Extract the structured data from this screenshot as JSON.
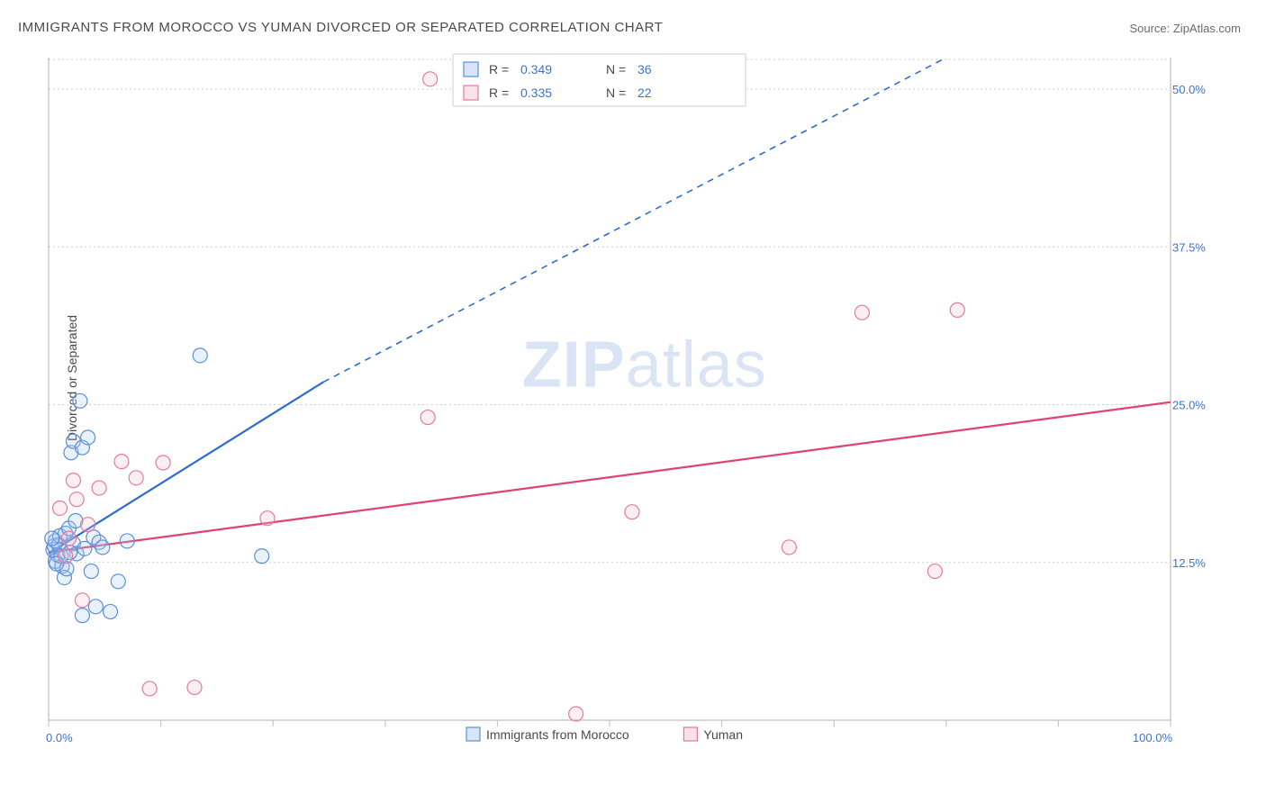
{
  "title_text": "IMMIGRANTS FROM MOROCCO VS YUMAN DIVORCED OR SEPARATED CORRELATION CHART",
  "source_prefix": "Source: ",
  "source_name": "ZipAtlas.com",
  "ylabel": "Divorced or Separated",
  "watermark_a": "ZIP",
  "watermark_b": "atlas",
  "chart": {
    "type": "scatter",
    "background_color": "#ffffff",
    "grid_color": "#cfcfcf",
    "axis_color": "#bdbdbd",
    "tick_label_color": "#3973d6",
    "label_color": "#4a4a4a",
    "label_fontsize": 14,
    "tick_fontsize": 13,
    "title_fontsize": 15,
    "xlim": [
      0,
      100
    ],
    "ylim": [
      0,
      52.5
    ],
    "x_ticks": [
      0,
      10,
      20,
      30,
      40,
      50,
      60,
      70,
      80,
      90,
      100
    ],
    "x_tick_labels": {
      "0": "0.0%",
      "100": "100.0%"
    },
    "y_ticks": [
      12.5,
      25.0,
      37.5,
      50.0
    ],
    "y_tick_labels": [
      "12.5%",
      "25.0%",
      "37.5%",
      "50.0%"
    ],
    "marker_radius": 8,
    "marker_stroke_width": 1.2,
    "marker_fill_opacity": 0.25
  },
  "series": [
    {
      "name": "Immigrants from Morocco",
      "color_stroke": "#5b8fd9",
      "color_fill": "#a9c6ef",
      "R": "0.349",
      "N": "36",
      "trend": {
        "solid": {
          "x1": 0,
          "y1": 13.2,
          "x2": 24.5,
          "y2": 26.8
        },
        "dash": {
          "x1": 24.5,
          "y1": 26.8,
          "x2": 80.0,
          "y2": 52.5
        },
        "color": "#2e6cd0",
        "width": 2.2
      },
      "points": [
        [
          0.4,
          13.5
        ],
        [
          0.5,
          13.8
        ],
        [
          0.6,
          12.6
        ],
        [
          0.6,
          14.2
        ],
        [
          0.8,
          13.1
        ],
        [
          0.9,
          13.9
        ],
        [
          1.0,
          14.6
        ],
        [
          1.2,
          12.2
        ],
        [
          1.4,
          11.3
        ],
        [
          1.5,
          14.8
        ],
        [
          1.6,
          12.0
        ],
        [
          1.8,
          15.2
        ],
        [
          2.0,
          21.2
        ],
        [
          2.2,
          22.1
        ],
        [
          2.2,
          14.0
        ],
        [
          2.5,
          13.2
        ],
        [
          2.8,
          25.3
        ],
        [
          3.0,
          21.6
        ],
        [
          3.0,
          8.3
        ],
        [
          3.5,
          22.4
        ],
        [
          3.8,
          11.8
        ],
        [
          4.0,
          14.5
        ],
        [
          4.2,
          9.0
        ],
        [
          4.5,
          14.1
        ],
        [
          4.8,
          13.7
        ],
        [
          5.5,
          8.6
        ],
        [
          6.2,
          11.0
        ],
        [
          7.0,
          14.2
        ],
        [
          3.2,
          13.6
        ],
        [
          13.5,
          28.9
        ],
        [
          1.1,
          13.0
        ],
        [
          0.7,
          12.4
        ],
        [
          19.0,
          13.0
        ],
        [
          1.9,
          13.3
        ],
        [
          2.4,
          15.8
        ],
        [
          0.3,
          14.4
        ]
      ]
    },
    {
      "name": "Yuman",
      "color_stroke": "#e57a9a",
      "color_fill": "#f4bfd0",
      "R": "0.335",
      "N": "22",
      "trend": {
        "solid": {
          "x1": 0,
          "y1": 13.3,
          "x2": 100,
          "y2": 25.2
        },
        "dash": null,
        "color": "#e1436f",
        "width": 2.2
      },
      "points": [
        [
          1.0,
          16.8
        ],
        [
          1.5,
          13.0
        ],
        [
          1.8,
          14.4
        ],
        [
          2.2,
          19.0
        ],
        [
          2.5,
          17.5
        ],
        [
          3.0,
          9.5
        ],
        [
          3.5,
          15.5
        ],
        [
          4.5,
          18.4
        ],
        [
          6.5,
          20.5
        ],
        [
          7.8,
          19.2
        ],
        [
          9.0,
          2.5
        ],
        [
          10.2,
          20.4
        ],
        [
          13.0,
          2.6
        ],
        [
          19.5,
          16.0
        ],
        [
          33.8,
          24.0
        ],
        [
          34.0,
          50.8
        ],
        [
          47.0,
          0.5
        ],
        [
          52.0,
          16.5
        ],
        [
          66.0,
          13.7
        ],
        [
          72.5,
          32.3
        ],
        [
          79.0,
          11.8
        ],
        [
          81.0,
          32.5
        ]
      ]
    }
  ],
  "legend_top": {
    "R_label": "R = ",
    "N_label": "N = "
  },
  "legend_bottom": {
    "swatch_size": 15
  }
}
